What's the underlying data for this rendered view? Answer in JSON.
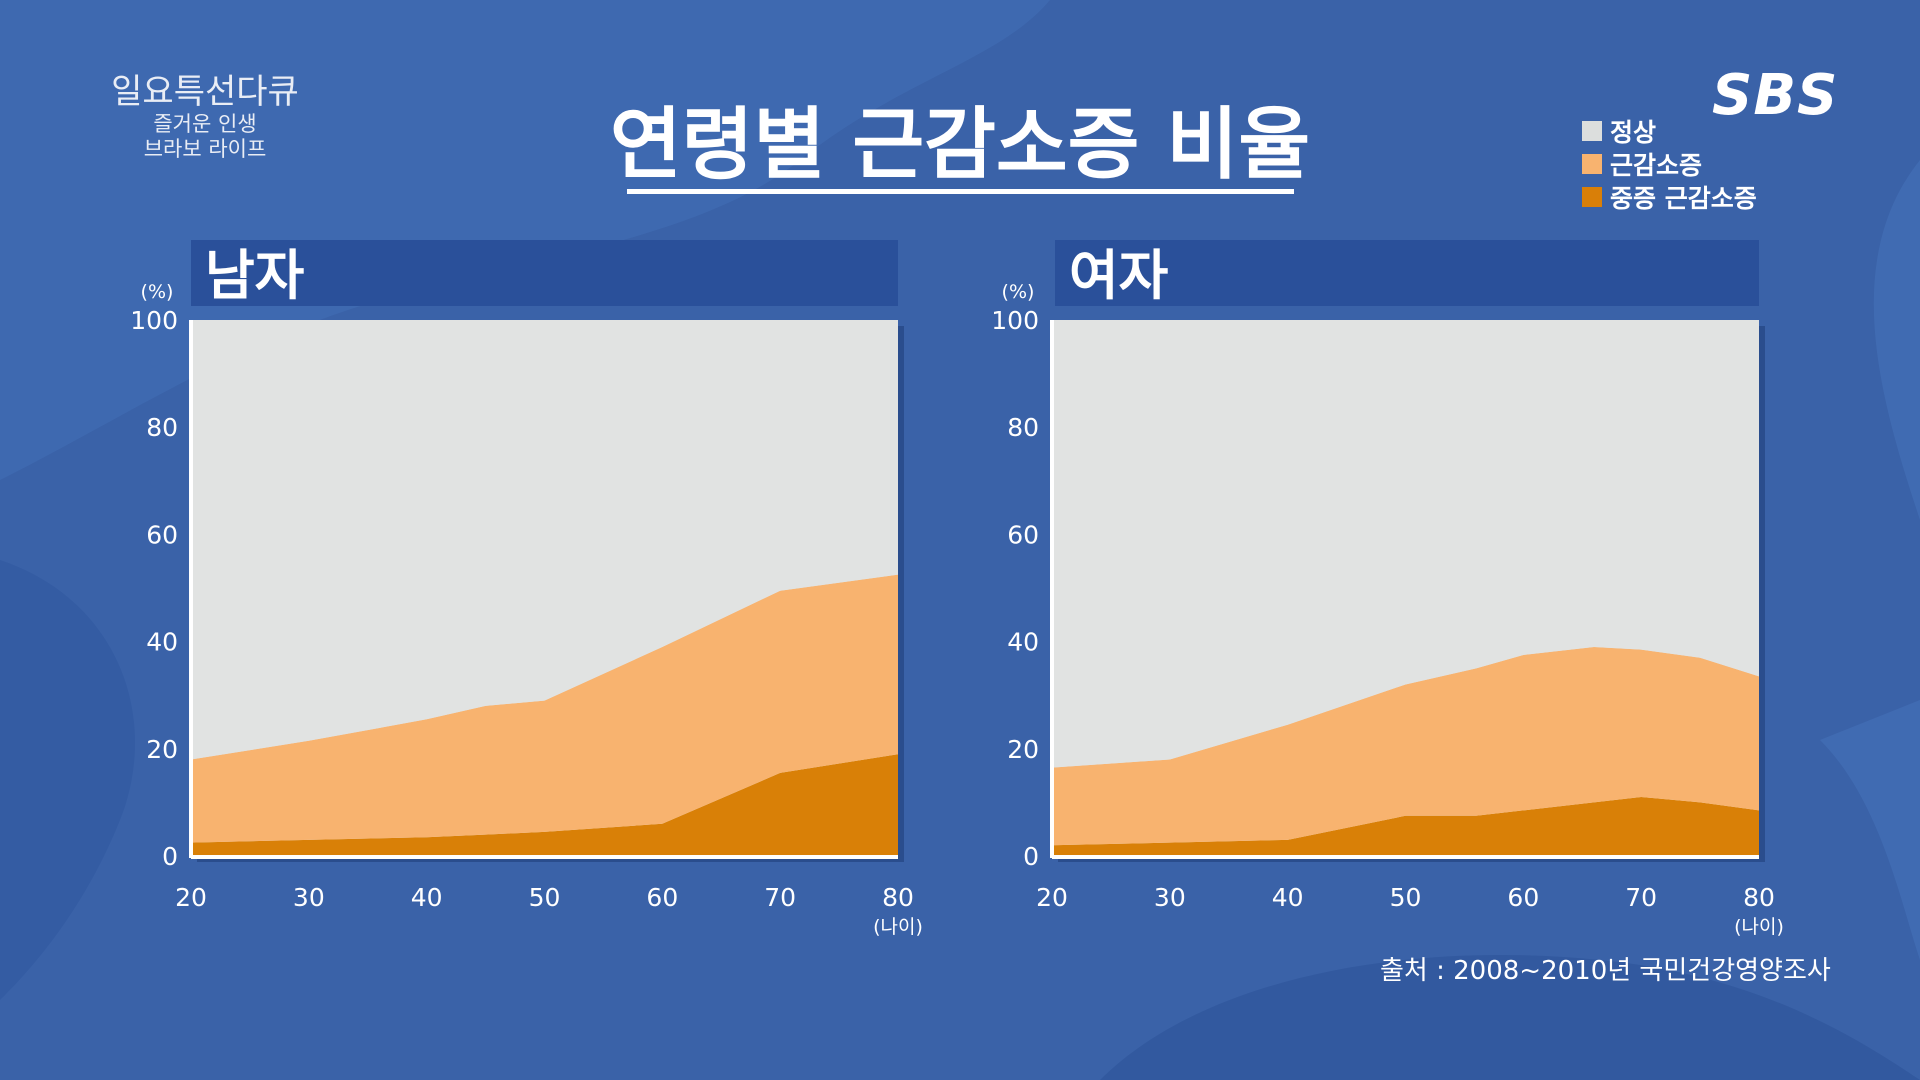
{
  "show": {
    "title": "일요특선다큐",
    "subtitle_line1": "즐거운 인생",
    "subtitle_line2": "브라보 라이프"
  },
  "header": {
    "title": "연령별 근감소증 비율"
  },
  "logo": "SBS",
  "legend": [
    {
      "label": "정상",
      "color": "#dcdedd"
    },
    {
      "label": "근감소증",
      "color": "#f8b36f"
    },
    {
      "label": "중증 근감소증",
      "color": "#d97f08"
    }
  ],
  "source": "출처 : 2008~2010년 국민건강영양조사",
  "colors": {
    "background": "#3a62a8",
    "panel_header": "#2a509a",
    "normal": "#e1e3e2",
    "sarcopenia": "#f8b36f",
    "severe": "#d98007"
  },
  "chart_data": [
    {
      "type": "area",
      "title": "남자",
      "ylabel": "(%)",
      "xlabel": "(나이)",
      "ylim": [
        0,
        100
      ],
      "xlim": [
        20,
        80
      ],
      "xticks": [
        20,
        30,
        40,
        50,
        60,
        70,
        80
      ],
      "yticks": [
        0,
        20,
        40,
        60,
        80,
        100
      ],
      "stacked": true,
      "x": [
        20,
        30,
        40,
        45,
        50,
        60,
        70,
        80
      ],
      "series": [
        {
          "name": "중증 근감소증",
          "values": [
            2.5,
            3.0,
            3.5,
            4.0,
            4.5,
            6.0,
            15.5,
            19.0
          ]
        },
        {
          "name": "근감소증",
          "values": [
            15.5,
            18.5,
            22.0,
            24.0,
            24.5,
            33.0,
            34.0,
            33.5
          ]
        },
        {
          "name": "정상",
          "values": [
            82.0,
            78.5,
            74.5,
            72.0,
            71.0,
            61.0,
            50.5,
            47.5
          ]
        }
      ]
    },
    {
      "type": "area",
      "title": "여자",
      "ylabel": "(%)",
      "xlabel": "(나이)",
      "ylim": [
        0,
        100
      ],
      "xlim": [
        20,
        80
      ],
      "xticks": [
        20,
        30,
        40,
        50,
        60,
        70,
        80
      ],
      "yticks": [
        0,
        20,
        40,
        60,
        80,
        100
      ],
      "stacked": true,
      "x": [
        20,
        30,
        40,
        50,
        56,
        60,
        66,
        70,
        75,
        80
      ],
      "series": [
        {
          "name": "중증 근감소증",
          "values": [
            2.0,
            2.5,
            3.0,
            7.5,
            7.5,
            8.5,
            10.0,
            11.0,
            10.0,
            8.5
          ]
        },
        {
          "name": "근감소증",
          "values": [
            14.5,
            15.5,
            21.5,
            24.5,
            27.5,
            29.0,
            29.0,
            27.5,
            27.0,
            25.0
          ]
        },
        {
          "name": "정상",
          "values": [
            83.5,
            82.0,
            75.5,
            68.0,
            65.0,
            62.5,
            61.0,
            61.5,
            63.0,
            66.5
          ]
        }
      ]
    }
  ]
}
